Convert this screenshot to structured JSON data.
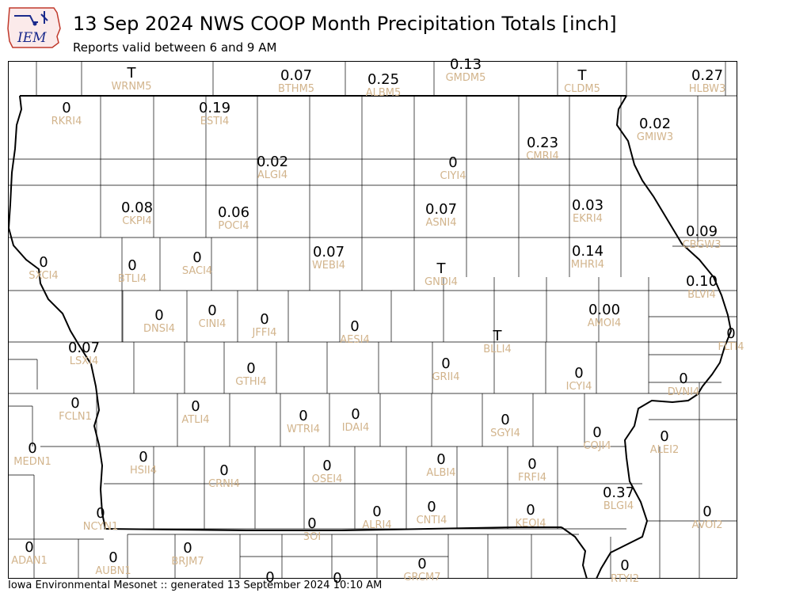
{
  "header": {
    "logo_text": "IEM",
    "title": "13 Sep 2024 NWS COOP Month Precipitation Totals [inch]",
    "subtitle": "Reports valid between 6 and 9 AM"
  },
  "footer": {
    "text": "Iowa Environmental Mesonet :: generated 13 September 2024 10:10 AM"
  },
  "colors": {
    "value_text": "#000000",
    "station_text": "#d2b48c",
    "county_lines": "#000000",
    "state_border": "#000000"
  },
  "stations": [
    {
      "id": "WRNM5",
      "value": "T"
    },
    {
      "id": "BTHM5",
      "value": "0.07"
    },
    {
      "id": "ALBM5",
      "value": "0.25"
    },
    {
      "id": "GMDM5",
      "value": "0.13"
    },
    {
      "id": "CLDM5",
      "value": "T"
    },
    {
      "id": "HLBW3",
      "value": "0.27"
    },
    {
      "id": "RKRI4",
      "value": "0"
    },
    {
      "id": "ESTI4",
      "value": "0.19"
    },
    {
      "id": "GMIW3",
      "value": "0.02"
    },
    {
      "id": "CMRI4",
      "value": "0.23"
    },
    {
      "id": "ALGI4",
      "value": "0.02"
    },
    {
      "id": "CIYI4",
      "value": "0"
    },
    {
      "id": "CKPI4",
      "value": "0.08"
    },
    {
      "id": "POCI4",
      "value": "0.06"
    },
    {
      "id": "ASNI4",
      "value": "0.07"
    },
    {
      "id": "EKRI4",
      "value": "0.03"
    },
    {
      "id": "CBGW3",
      "value": "0.09"
    },
    {
      "id": "SXCI4",
      "value": "0"
    },
    {
      "id": "BTLI4",
      "value": "0"
    },
    {
      "id": "SACI4",
      "value": "0"
    },
    {
      "id": "WEBI4",
      "value": "0.07"
    },
    {
      "id": "GNDI4",
      "value": "T"
    },
    {
      "id": "MHRI4",
      "value": "0.14"
    },
    {
      "id": "BLVI4",
      "value": "0.10"
    },
    {
      "id": "DNSI4",
      "value": "0"
    },
    {
      "id": "CINI4",
      "value": "0"
    },
    {
      "id": "JFFI4",
      "value": "0"
    },
    {
      "id": "AMOI4",
      "value": "0.00"
    },
    {
      "id": "AESI4",
      "value": "0"
    },
    {
      "id": "FLTI4",
      "value": "0"
    },
    {
      "id": "LSXI4",
      "value": "0.07"
    },
    {
      "id": "BLLI4",
      "value": "T"
    },
    {
      "id": "GTHI4",
      "value": "0"
    },
    {
      "id": "GRII4",
      "value": "0"
    },
    {
      "id": "ICYI4",
      "value": "0"
    },
    {
      "id": "DVNI4",
      "value": "0"
    },
    {
      "id": "FCLN1",
      "value": "0"
    },
    {
      "id": "ATLI4",
      "value": "0"
    },
    {
      "id": "WTRI4",
      "value": "0"
    },
    {
      "id": "IDAI4",
      "value": "0"
    },
    {
      "id": "SGYI4",
      "value": "0"
    },
    {
      "id": "COJI4",
      "value": "0"
    },
    {
      "id": "ALEI2",
      "value": "0"
    },
    {
      "id": "MEDN1",
      "value": "0"
    },
    {
      "id": "HSII4",
      "value": "0"
    },
    {
      "id": "CRNI4",
      "value": "0"
    },
    {
      "id": "OSEI4",
      "value": "0"
    },
    {
      "id": "ALBI4",
      "value": "0"
    },
    {
      "id": "FRFI4",
      "value": "0"
    },
    {
      "id": "BLGI4",
      "value": "0.37"
    },
    {
      "id": "NCYN1",
      "value": "0"
    },
    {
      "id": "3OI",
      "value": "0"
    },
    {
      "id": "ALRI4",
      "value": "0"
    },
    {
      "id": "CNTI4",
      "value": "0"
    },
    {
      "id": "KEOI4",
      "value": "0"
    },
    {
      "id": "AVOI2",
      "value": "0"
    },
    {
      "id": "ADAN1",
      "value": "0"
    },
    {
      "id": "AUBN1",
      "value": "0"
    },
    {
      "id": "BRJM7",
      "value": "0"
    },
    {
      "id": "GRCM7",
      "value": "0"
    },
    {
      "id": "RTYI2",
      "value": "0"
    },
    {
      "id": "",
      "value": "0"
    },
    {
      "id": "",
      "value": "0"
    }
  ]
}
